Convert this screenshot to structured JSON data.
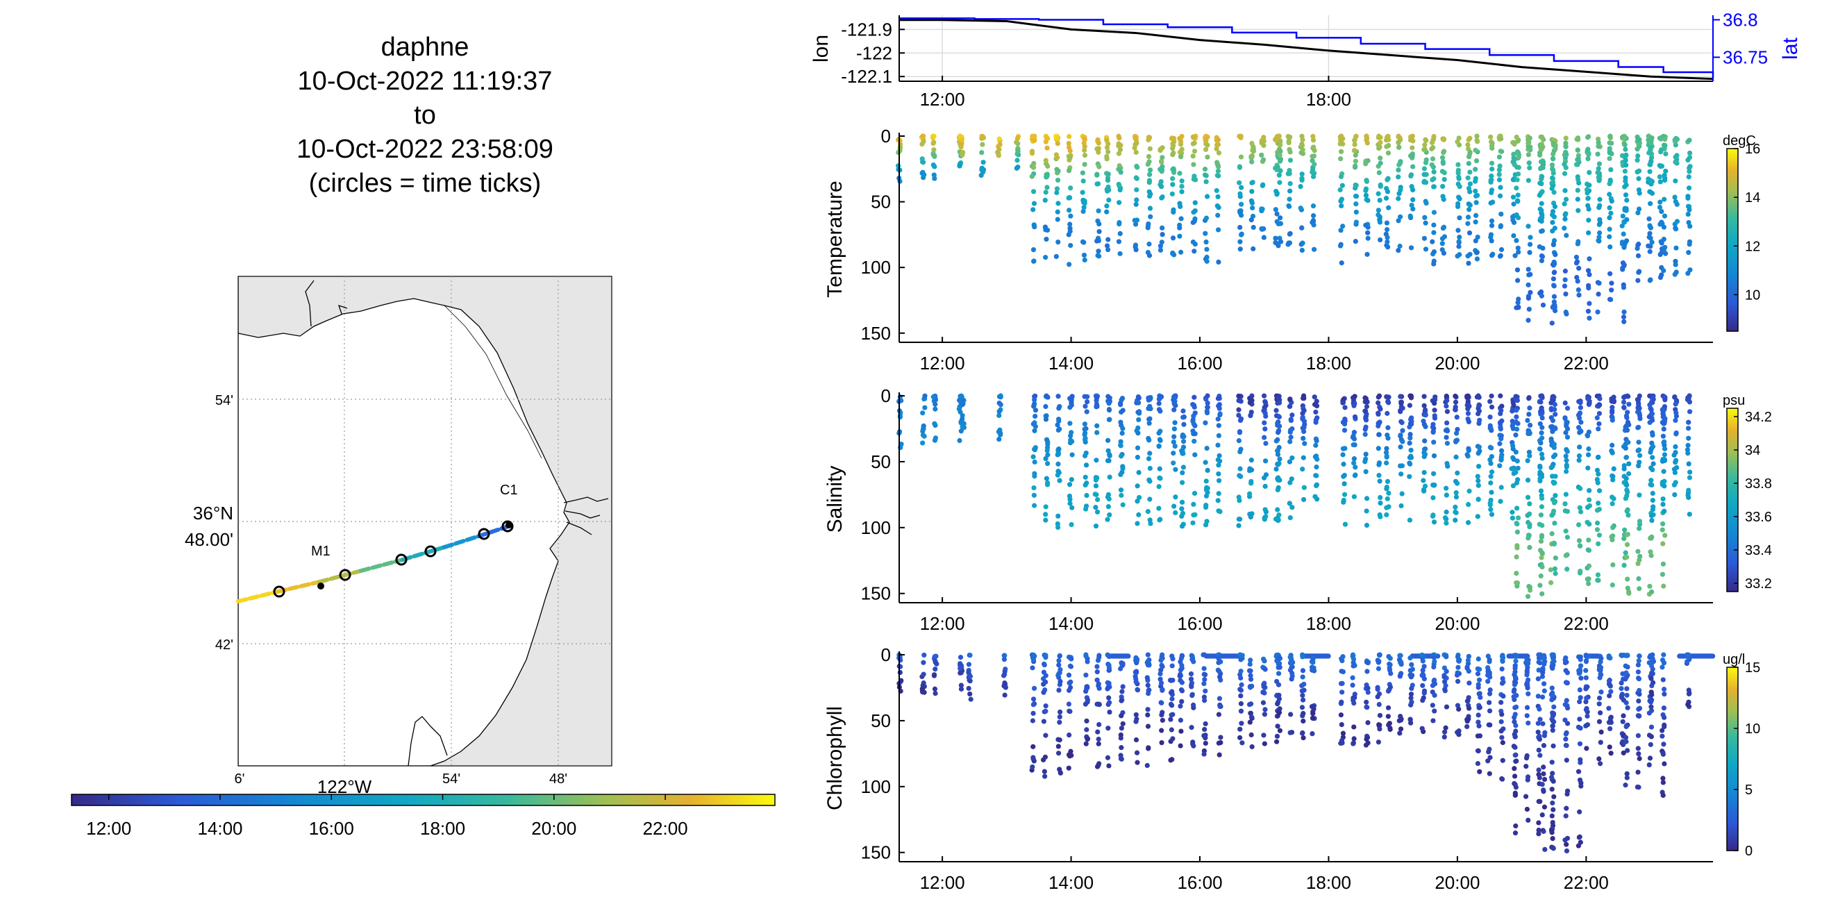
{
  "title": {
    "lines": [
      "daphne",
      "10-Oct-2022 11:19:37",
      "to",
      "10-Oct-2022 23:58:09",
      "(circles = time ticks)"
    ]
  },
  "map": {
    "lat_ticks": [
      "54'",
      "42'"
    ],
    "lat_label_lines": [
      "36°N",
      "48.00'"
    ],
    "lon_ticks": [
      "6'",
      "54'",
      "48'"
    ],
    "lon_label": "122°W",
    "station_labels": [
      "C1",
      "M1"
    ],
    "land_color": "#e6e6e6"
  },
  "time_colorbar": {
    "ticks": [
      "12:00",
      "14:00",
      "16:00",
      "18:00",
      "20:00",
      "22:00"
    ]
  },
  "chart_data": [
    {
      "type": "line",
      "name": "position",
      "ylabel_left": "lon",
      "ylabel_right": "lat",
      "x_ticks": [
        "12:00",
        "18:00"
      ],
      "x_tick_hours": [
        12,
        18
      ],
      "xlim_hours": [
        11.33,
        23.97
      ],
      "left_ticks": [
        "-121.9",
        "-122",
        "-122.1"
      ],
      "left_tick_values": [
        -121.9,
        -122.0,
        -122.1
      ],
      "left_ylim": [
        -122.12,
        -121.84
      ],
      "right_ticks": [
        "36.8",
        "36.75"
      ],
      "right_tick_values": [
        36.8,
        36.75
      ],
      "right_ylim": [
        36.718,
        36.806
      ],
      "lon_series": {
        "name": "lon",
        "color": "#000000",
        "x": [
          11.33,
          12.0,
          13.0,
          14.0,
          15.0,
          16.0,
          17.0,
          18.0,
          19.0,
          20.0,
          21.0,
          22.0,
          23.0,
          23.97
        ],
        "y": [
          -121.86,
          -121.86,
          -121.865,
          -121.9,
          -121.915,
          -121.945,
          -121.965,
          -121.99,
          -122.01,
          -122.03,
          -122.06,
          -122.08,
          -122.1,
          -122.11
        ]
      },
      "lat_series": {
        "name": "lat",
        "color": "#0000ff",
        "x": [
          11.33,
          12.5,
          13.5,
          14.5,
          15.5,
          16.5,
          17.5,
          18.5,
          19.5,
          20.5,
          21.5,
          22.5,
          23.2,
          23.97
        ],
        "y": [
          36.802,
          36.801,
          36.8,
          36.794,
          36.79,
          36.783,
          36.776,
          36.768,
          36.761,
          36.753,
          36.745,
          36.737,
          36.73,
          36.722
        ]
      }
    },
    {
      "type": "scatter",
      "name": "temperature",
      "ylabel": "Temperature",
      "units": "degC",
      "ylim": [
        0,
        157
      ],
      "yticks": [
        0,
        50,
        100,
        150
      ],
      "y_reversed": true,
      "x_ticks": [
        "12:00",
        "14:00",
        "16:00",
        "18:00",
        "20:00",
        "22:00"
      ],
      "x_tick_hours": [
        12,
        14,
        16,
        18,
        20,
        22
      ],
      "xlim_hours": [
        11.33,
        23.97
      ],
      "clim": [
        8.5,
        16
      ],
      "cbar_ticks": [
        "16",
        "14",
        "12",
        "10"
      ],
      "cbar_tick_values": [
        16,
        14,
        12,
        10
      ],
      "profiles": [
        {
          "t": 11.6,
          "max_depth": 42,
          "surface": 15.5,
          "bottom": 11.0
        },
        {
          "t": 12.0,
          "max_depth": 40,
          "surface": 15.2,
          "bottom": 11.0
        },
        {
          "t": 12.6,
          "max_depth": 15,
          "surface": 15.5,
          "bottom": 14.5
        },
        {
          "t": 12.9,
          "max_depth": 35,
          "surface": 15.0,
          "bottom": 11.5
        },
        {
          "t": 13.7,
          "max_depth": 98,
          "surface": 15.5,
          "bottom": 10.5
        },
        {
          "t": 14.5,
          "max_depth": 96,
          "surface": 15.2,
          "bottom": 10.5
        },
        {
          "t": 15.3,
          "max_depth": 95,
          "surface": 15.0,
          "bottom": 10.5
        },
        {
          "t": 16.0,
          "max_depth": 96,
          "surface": 15.0,
          "bottom": 10.5
        },
        {
          "t": 16.9,
          "max_depth": 88,
          "surface": 14.8,
          "bottom": 10.5
        },
        {
          "t": 17.5,
          "max_depth": 90,
          "surface": 14.5,
          "bottom": 10.5
        },
        {
          "t": 18.5,
          "max_depth": 100,
          "surface": 14.8,
          "bottom": 10.4
        },
        {
          "t": 19.2,
          "max_depth": 90,
          "surface": 14.5,
          "bottom": 10.5
        },
        {
          "t": 19.9,
          "max_depth": 98,
          "surface": 14.5,
          "bottom": 10.5
        },
        {
          "t": 20.6,
          "max_depth": 95,
          "surface": 14.2,
          "bottom": 10.5
        },
        {
          "t": 21.2,
          "max_depth": 143,
          "surface": 14.0,
          "bottom": 10.0
        },
        {
          "t": 21.6,
          "max_depth": 136,
          "surface": 14.0,
          "bottom": 10.0
        },
        {
          "t": 22.3,
          "max_depth": 145,
          "surface": 13.8,
          "bottom": 10.0
        },
        {
          "t": 22.9,
          "max_depth": 110,
          "surface": 13.5,
          "bottom": 10.2
        },
        {
          "t": 23.3,
          "max_depth": 108,
          "surface": 13.5,
          "bottom": 10.5
        }
      ]
    },
    {
      "type": "scatter",
      "name": "salinity",
      "ylabel": "Salinity",
      "units": "psu",
      "ylim": [
        0,
        157
      ],
      "yticks": [
        0,
        50,
        100,
        150
      ],
      "y_reversed": true,
      "x_ticks": [
        "12:00",
        "14:00",
        "16:00",
        "18:00",
        "20:00",
        "22:00"
      ],
      "x_tick_hours": [
        12,
        14,
        16,
        18,
        20,
        22
      ],
      "xlim_hours": [
        11.33,
        23.97
      ],
      "clim": [
        33.15,
        34.25
      ],
      "cbar_ticks": [
        "34.2",
        "34",
        "33.8",
        "33.6",
        "33.4",
        "33.2"
      ],
      "cbar_tick_values": [
        34.2,
        34.0,
        33.8,
        33.6,
        33.4,
        33.2
      ],
      "profiles": [
        {
          "t": 11.6,
          "max_depth": 40,
          "surface": 33.45,
          "bottom": 33.5
        },
        {
          "t": 12.0,
          "max_depth": 38,
          "surface": 33.45,
          "bottom": 33.5
        },
        {
          "t": 12.6,
          "max_depth": 35,
          "surface": 33.45,
          "bottom": 33.5
        },
        {
          "t": 13.7,
          "max_depth": 100,
          "surface": 33.35,
          "bottom": 33.65
        },
        {
          "t": 14.5,
          "max_depth": 100,
          "surface": 33.35,
          "bottom": 33.65
        },
        {
          "t": 15.3,
          "max_depth": 100,
          "surface": 33.35,
          "bottom": 33.65
        },
        {
          "t": 16.0,
          "max_depth": 100,
          "surface": 33.3,
          "bottom": 33.65
        },
        {
          "t": 16.9,
          "max_depth": 100,
          "surface": 33.2,
          "bottom": 33.65
        },
        {
          "t": 17.5,
          "max_depth": 95,
          "surface": 33.2,
          "bottom": 33.65
        },
        {
          "t": 18.5,
          "max_depth": 100,
          "surface": 33.2,
          "bottom": 33.65
        },
        {
          "t": 19.2,
          "max_depth": 95,
          "surface": 33.2,
          "bottom": 33.65
        },
        {
          "t": 19.9,
          "max_depth": 98,
          "surface": 33.2,
          "bottom": 33.65
        },
        {
          "t": 20.6,
          "max_depth": 95,
          "surface": 33.2,
          "bottom": 33.65
        },
        {
          "t": 21.2,
          "max_depth": 155,
          "surface": 33.25,
          "bottom": 33.9
        },
        {
          "t": 21.6,
          "max_depth": 135,
          "surface": 33.25,
          "bottom": 33.85
        },
        {
          "t": 22.3,
          "max_depth": 145,
          "surface": 33.25,
          "bottom": 33.85
        },
        {
          "t": 22.9,
          "max_depth": 152,
          "surface": 33.25,
          "bottom": 33.9
        },
        {
          "t": 23.3,
          "max_depth": 95,
          "surface": 33.25,
          "bottom": 33.65
        }
      ]
    },
    {
      "type": "scatter",
      "name": "chlorophyll",
      "ylabel": "Chlorophyll",
      "units": "ug/l",
      "ylim": [
        0,
        157
      ],
      "yticks": [
        0,
        50,
        100,
        150
      ],
      "y_reversed": true,
      "x_ticks": [
        "12:00",
        "14:00",
        "16:00",
        "18:00",
        "20:00",
        "22:00"
      ],
      "x_tick_hours": [
        12,
        14,
        16,
        18,
        20,
        22
      ],
      "xlim_hours": [
        11.33,
        23.97
      ],
      "clim": [
        0,
        15
      ],
      "cbar_ticks": [
        "15",
        "10",
        "5",
        "0"
      ],
      "cbar_tick_values": [
        15,
        10,
        5,
        0
      ],
      "profiles": [
        {
          "t": 11.6,
          "max_depth": 30,
          "surface": 2.5,
          "bottom": 0.5
        },
        {
          "t": 12.0,
          "max_depth": 30,
          "surface": 2.5,
          "bottom": 0.5
        },
        {
          "t": 12.7,
          "max_depth": 35,
          "surface": 3.0,
          "bottom": 1.0
        },
        {
          "t": 13.7,
          "max_depth": 98,
          "surface": 3.0,
          "bottom": 0.5
        },
        {
          "t": 14.5,
          "max_depth": 85,
          "surface": 3.0,
          "bottom": 0.5
        },
        {
          "t": 15.3,
          "max_depth": 85,
          "surface": 3.0,
          "bottom": 0.5
        },
        {
          "t": 16.0,
          "max_depth": 80,
          "surface": 3.0,
          "bottom": 0.5
        },
        {
          "t": 16.9,
          "max_depth": 70,
          "surface": 3.5,
          "bottom": 0.5
        },
        {
          "t": 17.5,
          "max_depth": 65,
          "surface": 3.5,
          "bottom": 0.5
        },
        {
          "t": 18.5,
          "max_depth": 70,
          "surface": 3.5,
          "bottom": 0.5
        },
        {
          "t": 19.2,
          "max_depth": 62,
          "surface": 3.5,
          "bottom": 0.5
        },
        {
          "t": 19.9,
          "max_depth": 65,
          "surface": 3.5,
          "bottom": 0.5
        },
        {
          "t": 20.6,
          "max_depth": 95,
          "surface": 3.5,
          "bottom": 0.5
        },
        {
          "t": 21.2,
          "max_depth": 140,
          "surface": 3.0,
          "bottom": 0.5
        },
        {
          "t": 21.6,
          "max_depth": 150,
          "surface": 3.0,
          "bottom": 0.5
        },
        {
          "t": 22.3,
          "max_depth": 85,
          "surface": 3.0,
          "bottom": 0.5
        },
        {
          "t": 22.9,
          "max_depth": 108,
          "surface": 3.0,
          "bottom": 0.5
        },
        {
          "t": 23.3,
          "max_depth": 40,
          "surface": 3.0,
          "bottom": 0.5
        }
      ],
      "surface_bands": [
        {
          "from": 14.6,
          "to": 14.9
        },
        {
          "from": 16.1,
          "to": 16.6
        },
        {
          "from": 17.6,
          "to": 18.0
        },
        {
          "from": 19.3,
          "to": 19.7
        },
        {
          "from": 20.8,
          "to": 21.1
        },
        {
          "from": 22.0,
          "to": 22.2
        },
        {
          "from": 23.45,
          "to": 23.97
        }
      ]
    }
  ]
}
